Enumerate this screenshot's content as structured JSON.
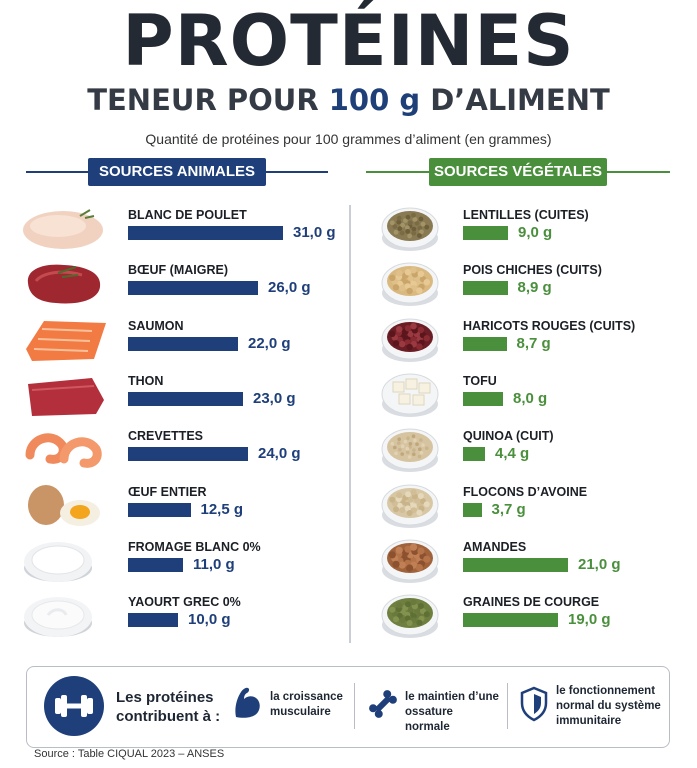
{
  "header": {
    "title": "PROTÉINES",
    "subtitle_pre": "TENEUR POUR ",
    "subtitle_highlight": "100 g",
    "subtitle_post": " D’ALIMENT",
    "caption": "Quantité de protéines pour 100 grammes d’aliment (en grammes)"
  },
  "colors": {
    "animal": "#1e3f7a",
    "vegetal": "#4a8f3c",
    "title": "#242a33",
    "highlight": "#1f3f78"
  },
  "chart_data": [
    {
      "type": "bar",
      "orientation": "horizontal",
      "title": "SOURCES ANIMALES",
      "unit": "g",
      "categories": [
        "BLANC DE POULET",
        "BŒUF (MAIGRE)",
        "SAUMON",
        "THON",
        "CREVETTES",
        "ŒUF ENTIER",
        "FROMAGE BLANC 0%",
        "YAOURT GREC 0%"
      ],
      "values": [
        31.0,
        26.0,
        22.0,
        23.0,
        24.0,
        12.5,
        11.0,
        10.0
      ],
      "value_labels": [
        "31,0 g",
        "26,0 g",
        "22,0 g",
        "23,0 g",
        "24,0 g",
        "12,5 g",
        "11,0 g",
        "10,0 g"
      ],
      "icons": [
        "chicken-breast-icon",
        "beef-steak-icon",
        "salmon-fillet-icon",
        "tuna-icon",
        "shrimp-icon",
        "egg-icon",
        "fromage-blanc-icon",
        "greek-yogurt-icon"
      ],
      "color": "#1e3f7a"
    },
    {
      "type": "bar",
      "orientation": "horizontal",
      "title": "SOURCES VÉGÉTALES",
      "unit": "g",
      "categories": [
        "LENTILLES (CUITES)",
        "POIS CHICHES (CUITS)",
        "HARICOTS ROUGES (CUITS)",
        "TOFU",
        "QUINOA (CUIT)",
        "FLOCONS D’AVOINE",
        "AMANDES",
        "GRAINES DE COURGE"
      ],
      "values": [
        9.0,
        8.9,
        8.7,
        8.0,
        4.4,
        3.7,
        21.0,
        19.0
      ],
      "value_labels": [
        "9,0 g",
        "8,9 g",
        "8,7 g",
        "8,0 g",
        "4,4 g",
        "3,7 g",
        "21,0 g",
        "19,0 g"
      ],
      "icons": [
        "lentils-bowl-icon",
        "chickpeas-bowl-icon",
        "red-beans-bowl-icon",
        "tofu-bowl-icon",
        "quinoa-bowl-icon",
        "oat-flakes-bowl-icon",
        "almonds-bowl-icon",
        "pumpkin-seeds-bowl-icon"
      ],
      "color": "#4a8f3c"
    }
  ],
  "benefits": {
    "lead": "Les protéines contribuent à :",
    "items": [
      {
        "icon": "muscle-arm-icon",
        "text": "la croissance musculaire"
      },
      {
        "icon": "bone-icon",
        "text": "le maintien d’une ossature normale"
      },
      {
        "icon": "shield-icon",
        "text": "le fonctionnement normal du système immunitaire"
      }
    ]
  },
  "source": "Source : Table CIQUAL 2023 – ANSES"
}
